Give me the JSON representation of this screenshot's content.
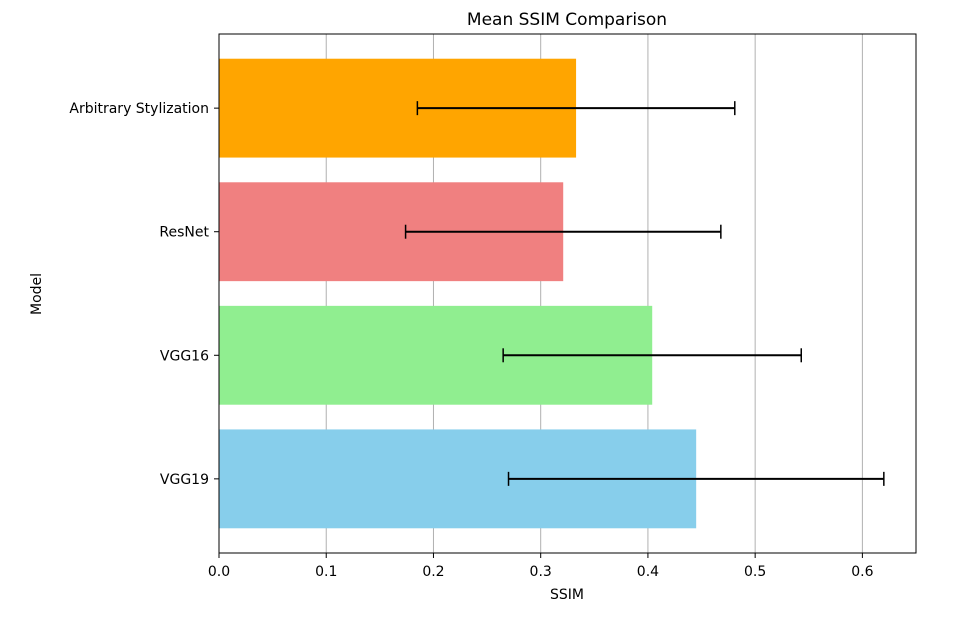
{
  "chart_data": {
    "type": "bar",
    "orientation": "horizontal",
    "title": "Mean SSIM Comparison",
    "xlabel": "SSIM",
    "ylabel": "Model",
    "xlim": [
      0.0,
      0.65
    ],
    "xticks": [
      0.0,
      0.1,
      0.2,
      0.3,
      0.4,
      0.5,
      0.6
    ],
    "xtick_labels": [
      "0.0",
      "0.1",
      "0.2",
      "0.3",
      "0.4",
      "0.5",
      "0.6"
    ],
    "grid": "vertical",
    "categories": [
      "VGG19",
      "VGG16",
      "ResNet",
      "Arbitrary Stylization"
    ],
    "values": [
      0.445,
      0.404,
      0.321,
      0.333
    ],
    "errors": [
      0.175,
      0.139,
      0.147,
      0.148
    ],
    "colors": [
      "#87CEEB",
      "#90EE90",
      "#F08080",
      "#FFA500"
    ]
  }
}
